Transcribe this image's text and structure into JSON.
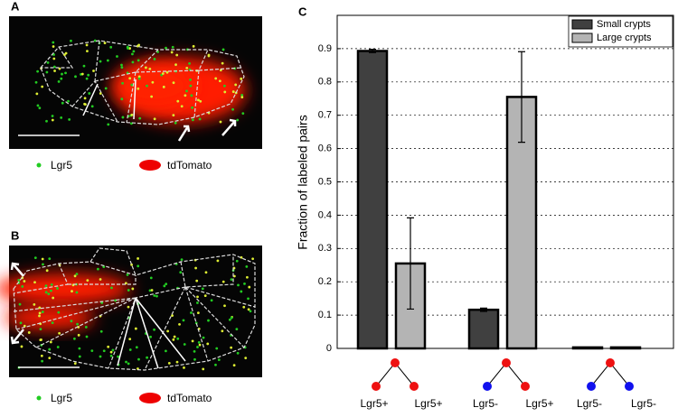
{
  "panels": [
    {
      "label": "A",
      "legend": [
        "Lgr5",
        "tdTomato"
      ]
    },
    {
      "label": "B",
      "legend": [
        "Lgr5",
        "tdTomato"
      ]
    }
  ],
  "chart_data": {
    "type": "bar",
    "panel_label": "C",
    "ylabel": "Fraction of labeled pairs",
    "categories": [
      [
        "Lgr5+",
        "Lgr5+"
      ],
      [
        "Lgr5-",
        "Lgr5+"
      ],
      [
        "Lgr5-",
        "Lgr5-"
      ]
    ],
    "node_colors": [
      [
        "#ee1111",
        "#ee1111",
        "#ee1111"
      ],
      [
        "#ee1111",
        "#1111ee",
        "#ee1111"
      ],
      [
        "#ee1111",
        "#1111ee",
        "#1111ee"
      ]
    ],
    "series": [
      {
        "name": "Small crypts",
        "color": "#404040",
        "values": [
          0.893,
          0.116,
          0.003
        ],
        "errors": [
          0.005,
          0.005,
          0
        ]
      },
      {
        "name": "Large crypts",
        "color": "#b4b4b4",
        "values": [
          0.255,
          0.755,
          0.003
        ],
        "errors": [
          0.137,
          0.136,
          0
        ]
      }
    ],
    "ylim": [
      0,
      1
    ],
    "yticks": [
      0,
      0.1,
      0.2,
      0.3,
      0.4,
      0.5,
      0.6,
      0.7,
      0.8,
      0.9
    ],
    "grid": true,
    "legend": "top-right"
  }
}
